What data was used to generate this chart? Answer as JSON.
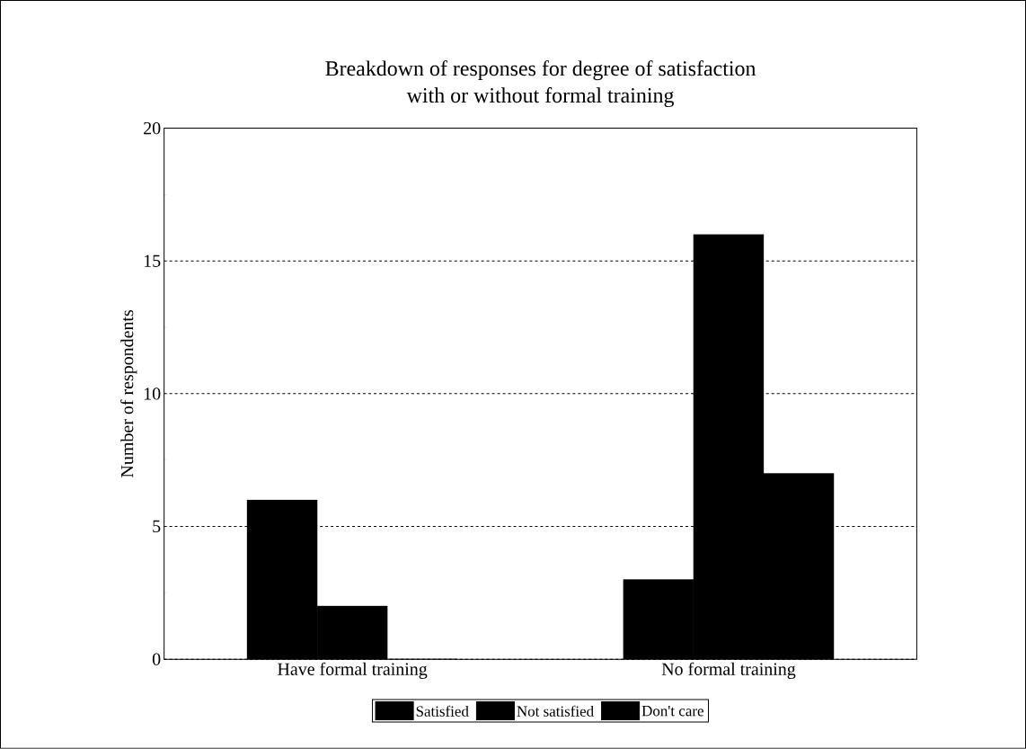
{
  "chart_data": {
    "type": "bar",
    "title": "Breakdown of responses for degree of satisfaction\nwith or without formal training",
    "ylabel": "Number of respondents",
    "categories": [
      "Have formal training",
      "No formal training"
    ],
    "series": [
      {
        "name": "Satisfied",
        "color": "#000000",
        "values": [
          6,
          3
        ]
      },
      {
        "name": "Not satisfied",
        "color": "#000000",
        "values": [
          2,
          16
        ]
      },
      {
        "name": "Don't care",
        "color": "#000000",
        "values": [
          0,
          7
        ]
      }
    ],
    "ylim": [
      0,
      20
    ],
    "yticks": [
      0,
      5,
      10,
      15,
      20
    ],
    "grid": "y",
    "legend": "bottom"
  }
}
